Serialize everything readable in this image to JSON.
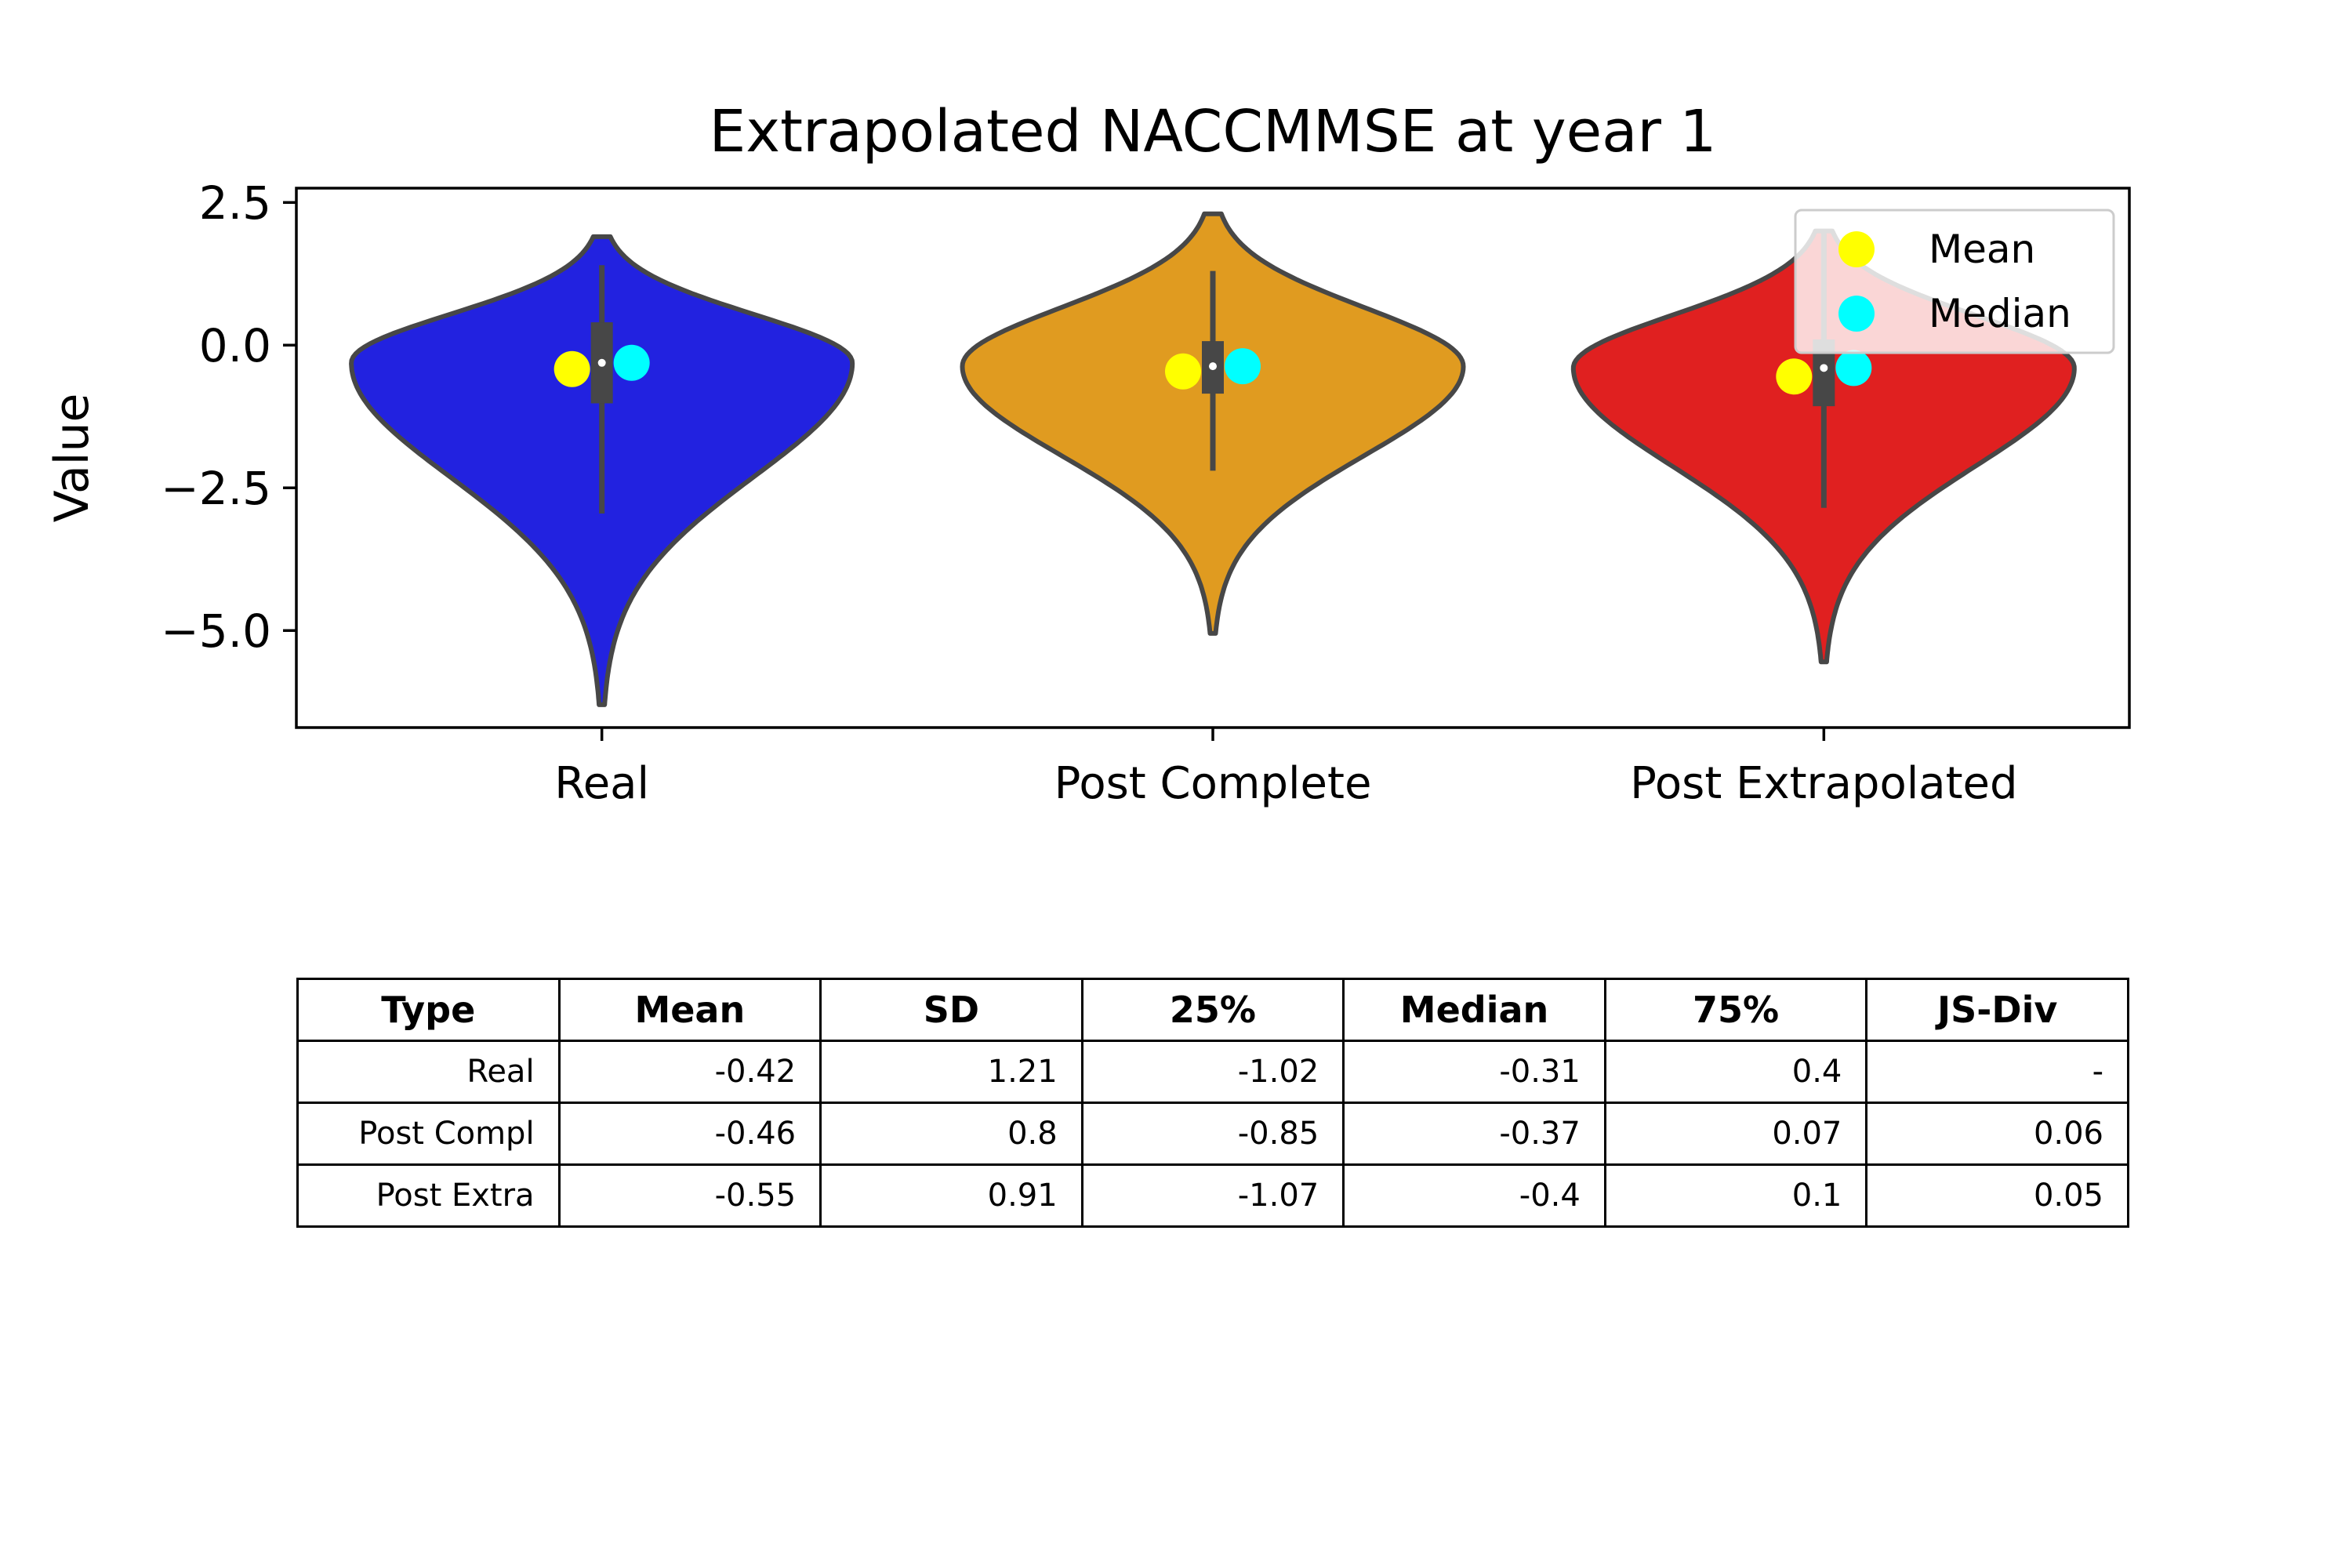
{
  "chart_data": {
    "type": "violin",
    "title": "Extrapolated NACCMMSE at year 1",
    "ylabel": "Value",
    "xlabel": "",
    "ylim": [
      -6.7,
      2.75
    ],
    "yticks": [
      2.5,
      0.0,
      -2.5,
      -5.0
    ],
    "ytick_labels": [
      "2.5",
      "0.0",
      "−2.5",
      "−5.0"
    ],
    "categories": [
      "Real",
      "Post Complete",
      "Post Extrapolated"
    ],
    "series": [
      {
        "category": "Real",
        "color": "#2222e0",
        "mean": -0.42,
        "median": -0.31,
        "q1": -1.02,
        "q3": 0.4,
        "whisker_low": -2.95,
        "whisker_high": 1.4,
        "min": -6.3,
        "max": 1.9
      },
      {
        "category": "Post Complete",
        "color": "#e09b20",
        "mean": -0.46,
        "median": -0.37,
        "q1": -0.85,
        "q3": 0.07,
        "whisker_low": -2.2,
        "whisker_high": 1.3,
        "min": -5.05,
        "max": 2.3
      },
      {
        "category": "Post Extrapolated",
        "color": "#e02020",
        "mean": -0.55,
        "median": -0.4,
        "q1": -1.07,
        "q3": 0.1,
        "whisker_low": -2.85,
        "whisker_high": 2.0,
        "min": -5.55,
        "max": 2.0
      }
    ],
    "legend": {
      "position": "top-right",
      "entries": [
        {
          "label": "Mean",
          "color": "#ffff00"
        },
        {
          "label": "Median",
          "color": "#00ffff"
        }
      ]
    },
    "grid": false
  },
  "table": {
    "headers": [
      "Type",
      "Mean",
      "SD",
      "25%",
      "Median",
      "75%",
      "JS-Div"
    ],
    "rows": [
      [
        "Real",
        "-0.42",
        "1.21",
        "-1.02",
        "-0.31",
        "0.4",
        "-"
      ],
      [
        "Post Compl",
        "-0.46",
        "0.8",
        "-0.85",
        "-0.37",
        "0.07",
        "0.06"
      ],
      [
        "Post Extra",
        "-0.55",
        "0.91",
        "-1.07",
        "-0.4",
        "0.1",
        "0.05"
      ]
    ]
  }
}
